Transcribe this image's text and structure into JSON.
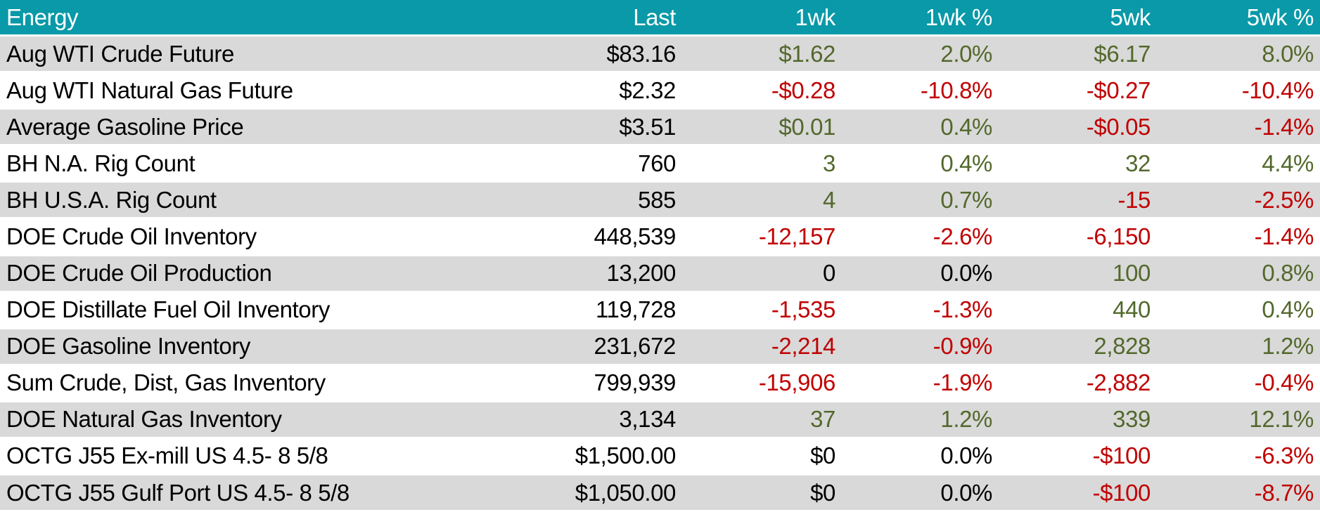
{
  "colors": {
    "header_background": "#0999A8",
    "header_text": "#FFFFFF",
    "alternate_row_background": "#D9D9D9",
    "row_background": "#FFFFFF",
    "positive_value": "#53682C",
    "negative_value": "#C00000",
    "neutral_value": "#000000"
  },
  "chart_data": {
    "type": "table",
    "title": "Energy",
    "columns": [
      "Energy",
      "Last",
      "1wk",
      "1wk %",
      "5wk",
      "5wk %"
    ],
    "rows": [
      {
        "cells": [
          "Aug WTI Crude Future",
          "$83.16",
          "$1.62",
          "2.0%",
          "$6.17",
          "8.0%"
        ],
        "trend": [
          "label",
          "neutral",
          "up",
          "up",
          "up",
          "up"
        ]
      },
      {
        "cells": [
          "Aug WTI Natural Gas Future",
          "$2.32",
          "-$0.28",
          "-10.8%",
          "-$0.27",
          "-10.4%"
        ],
        "trend": [
          "label",
          "neutral",
          "down",
          "down",
          "down",
          "down"
        ]
      },
      {
        "cells": [
          "Average Gasoline Price",
          "$3.51",
          "$0.01",
          "0.4%",
          "-$0.05",
          "-1.4%"
        ],
        "trend": [
          "label",
          "neutral",
          "up",
          "up",
          "down",
          "down"
        ]
      },
      {
        "cells": [
          "BH N.A. Rig Count",
          "760",
          "3",
          "0.4%",
          "32",
          "4.4%"
        ],
        "trend": [
          "label",
          "neutral",
          "up",
          "up",
          "up",
          "up"
        ]
      },
      {
        "cells": [
          "BH U.S.A. Rig Count",
          "585",
          "4",
          "0.7%",
          "-15",
          "-2.5%"
        ],
        "trend": [
          "label",
          "neutral",
          "up",
          "up",
          "down",
          "down"
        ]
      },
      {
        "cells": [
          "DOE Crude Oil Inventory",
          "448,539",
          "-12,157",
          "-2.6%",
          "-6,150",
          "-1.4%"
        ],
        "trend": [
          "label",
          "neutral",
          "down",
          "down",
          "down",
          "down"
        ]
      },
      {
        "cells": [
          "DOE Crude Oil Production",
          "13,200",
          "0",
          "0.0%",
          "100",
          "0.8%"
        ],
        "trend": [
          "label",
          "neutral",
          "neutral",
          "neutral",
          "up",
          "up"
        ]
      },
      {
        "cells": [
          "DOE Distillate Fuel Oil Inventory",
          "119,728",
          "-1,535",
          "-1.3%",
          "440",
          "0.4%"
        ],
        "trend": [
          "label",
          "neutral",
          "down",
          "down",
          "up",
          "up"
        ]
      },
      {
        "cells": [
          "DOE Gasoline Inventory",
          "231,672",
          "-2,214",
          "-0.9%",
          "2,828",
          "1.2%"
        ],
        "trend": [
          "label",
          "neutral",
          "down",
          "down",
          "up",
          "up"
        ]
      },
      {
        "cells": [
          "Sum Crude, Dist, Gas Inventory",
          "799,939",
          "-15,906",
          "-1.9%",
          "-2,882",
          "-0.4%"
        ],
        "trend": [
          "label",
          "neutral",
          "down",
          "down",
          "down",
          "down"
        ]
      },
      {
        "cells": [
          "DOE Natural Gas Inventory",
          "3,134",
          "37",
          "1.2%",
          "339",
          "12.1%"
        ],
        "trend": [
          "label",
          "neutral",
          "up",
          "up",
          "up",
          "up"
        ]
      },
      {
        "cells": [
          "OCTG J55 Ex-mill US 4.5- 8 5/8",
          "$1,500.00",
          "$0",
          "0.0%",
          "-$100",
          "-6.3%"
        ],
        "trend": [
          "label",
          "neutral",
          "neutral",
          "neutral",
          "down",
          "down"
        ]
      },
      {
        "cells": [
          "OCTG J55 Gulf Port US 4.5- 8 5/8",
          "$1,050.00",
          "$0",
          "0.0%",
          "-$100",
          "-8.7%"
        ],
        "trend": [
          "label",
          "neutral",
          "neutral",
          "neutral",
          "down",
          "down"
        ]
      }
    ]
  }
}
